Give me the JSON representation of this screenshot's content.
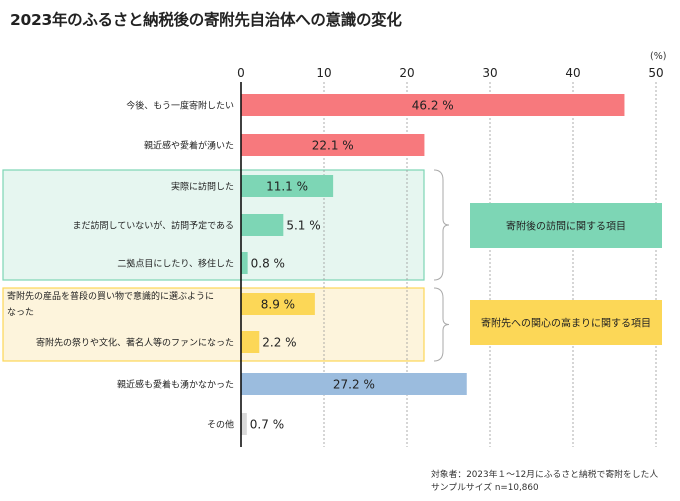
{
  "title": "2023年のふるさと納税後の寄附先自治体への意識の変化",
  "unit_label": "(%)",
  "chart_data": {
    "type": "bar",
    "orientation": "horizontal",
    "title": "2023年のふるさと納税後の寄附先自治体への意識の変化",
    "xlabel": "(%)",
    "ylabel": "",
    "xlim": [
      0,
      50
    ],
    "x_ticks": [
      0,
      10,
      20,
      30,
      40,
      50
    ],
    "grid": true,
    "categories": [
      "今後、もう一度寄附したい",
      "親近感や愛着が湧いた",
      "実際に訪問した",
      "まだ訪問していないが、訪問予定である",
      "二拠点目にしたり、移住した",
      "寄附先の産品を普段の買い物で意識的に選ぶようになった",
      "寄附先の祭りや文化、著名人等のファンになった",
      "親近感も愛着も湧かなかった",
      "その他"
    ],
    "category_lines": [
      [
        "今後、もう一度寄附したい"
      ],
      [
        "親近感や愛着が湧いた"
      ],
      [
        "実際に訪問した"
      ],
      [
        "まだ訪問していないが、訪問予定である"
      ],
      [
        "二拠点目にしたり、移住した"
      ],
      [
        "寄附先の産品を普段の買い物で意識的に選ぶように",
        "なった"
      ],
      [
        "寄附先の祭りや文化、著名人等のファンになった"
      ],
      [
        "親近感も愛着も湧かなかった"
      ],
      [
        "その他"
      ]
    ],
    "values": [
      46.2,
      22.1,
      11.1,
      5.1,
      0.8,
      8.9,
      2.2,
      27.2,
      0.7
    ],
    "value_labels": [
      "46.2 %",
      "22.1 %",
      "11.1 %",
      "5.1 %",
      "0.8 %",
      "8.9 %",
      "2.2 %",
      "27.2 %",
      "0.7 %"
    ],
    "bar_colors": [
      "#f7797d",
      "#f7797d",
      "#7dd6b5",
      "#7dd6b5",
      "#7dd6b5",
      "#fcd757",
      "#fcd757",
      "#9bbcde",
      "#d9d9d9"
    ],
    "groups": [
      {
        "label": "寄附後の訪問に関する項目",
        "rows": [
          2,
          3,
          4
        ],
        "fill": "#e6f6f0",
        "border": "#7dd6b5",
        "label_fill": "#7dd6b5"
      },
      {
        "label": "寄附先への関心の高まりに関する項目",
        "rows": [
          5,
          6
        ],
        "fill": "#fdf4dc",
        "border": "#fcd757",
        "label_fill": "#fcd757"
      }
    ]
  },
  "footnote": {
    "target": "対象者：2023年１～12月にふるさと納税で寄附をした人",
    "sample": "サンプルサイズ n=10,860"
  }
}
